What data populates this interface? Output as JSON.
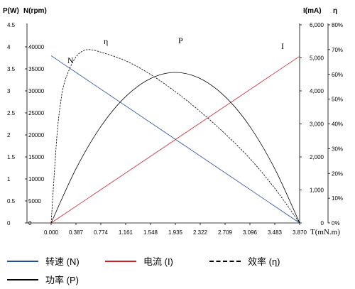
{
  "chart_data": {
    "type": "line",
    "title": "",
    "x": {
      "label": "T(mN.m)",
      "ticks": [
        "0.000",
        "0.387",
        "0.774",
        "1.161",
        "1.548",
        "1.935",
        "2.322",
        "2.709",
        "3.096",
        "3.483",
        "3.870"
      ],
      "range": [
        0,
        3.87
      ]
    },
    "y_axes": {
      "power": {
        "label": "P(W)",
        "ticks": [
          "0",
          "0.5",
          "1",
          "1.5",
          "2",
          "2.5",
          "3",
          "3.5",
          "4",
          "4.5"
        ],
        "range": [
          0,
          4.5
        ]
      },
      "speed": {
        "label": "N(rpm)",
        "ticks": [
          "0",
          "5000",
          "10000",
          "15000",
          "20000",
          "25000",
          "30000",
          "35000",
          "40000"
        ],
        "range": [
          0,
          45000
        ]
      },
      "current": {
        "label": "I(mA)",
        "ticks": [
          "0",
          "1,000",
          "2,000",
          "3,000",
          "4,000",
          "5,000",
          "6,000"
        ],
        "range": [
          0,
          6000
        ]
      },
      "efficiency": {
        "label": "η",
        "ticks": [
          "0%",
          "10%",
          "20%",
          "30%",
          "40%",
          "50%",
          "60%",
          "70%",
          "80%"
        ],
        "range": [
          0,
          80
        ]
      }
    },
    "series": [
      {
        "name": "转速 (N)",
        "axis": "speed",
        "color": "#1f4e9c",
        "style": "solid",
        "points": [
          [
            0,
            38000
          ],
          [
            3.87,
            0
          ]
        ]
      },
      {
        "name": "电流 (I)",
        "axis": "current",
        "color": "#d12027",
        "style": "solid",
        "points": [
          [
            0,
            0
          ],
          [
            3.87,
            5050
          ]
        ]
      },
      {
        "name": "效率 (η)",
        "axis": "efficiency",
        "color": "#000000",
        "style": "dashed",
        "points": [
          [
            0,
            0
          ],
          [
            0.05,
            20
          ],
          [
            0.1,
            38
          ],
          [
            0.15,
            49
          ],
          [
            0.2,
            56
          ],
          [
            0.3,
            63
          ],
          [
            0.4,
            67.5
          ],
          [
            0.5,
            69.5
          ],
          [
            0.6,
            70
          ],
          [
            0.774,
            69
          ],
          [
            1.161,
            65.5
          ],
          [
            1.548,
            60
          ],
          [
            1.935,
            53
          ],
          [
            2.322,
            45
          ],
          [
            2.709,
            36
          ],
          [
            3.096,
            26
          ],
          [
            3.483,
            14
          ],
          [
            3.87,
            0
          ]
        ]
      },
      {
        "name": "功率 (P)",
        "axis": "power",
        "color": "#000000",
        "style": "solid",
        "points": [
          [
            0,
            0
          ],
          [
            0.387,
            1.23
          ],
          [
            0.774,
            2.19
          ],
          [
            1.161,
            2.87
          ],
          [
            1.548,
            3.28
          ],
          [
            1.935,
            3.42
          ],
          [
            2.322,
            3.28
          ],
          [
            2.709,
            2.87
          ],
          [
            3.096,
            2.19
          ],
          [
            3.483,
            1.23
          ],
          [
            3.87,
            0
          ]
        ]
      }
    ],
    "annotations": [
      {
        "text": "N",
        "series": "转速 (N)"
      },
      {
        "text": "η",
        "series": "效率 (η)"
      },
      {
        "text": "P",
        "series": "功率 (P)"
      },
      {
        "text": "I",
        "series": "电流 (I)"
      }
    ],
    "grid": false
  },
  "legend": {
    "speed": "转速 (N)",
    "current": "电流 (I)",
    "efficiency": "效率 (η)",
    "power": "功率 (P)"
  }
}
